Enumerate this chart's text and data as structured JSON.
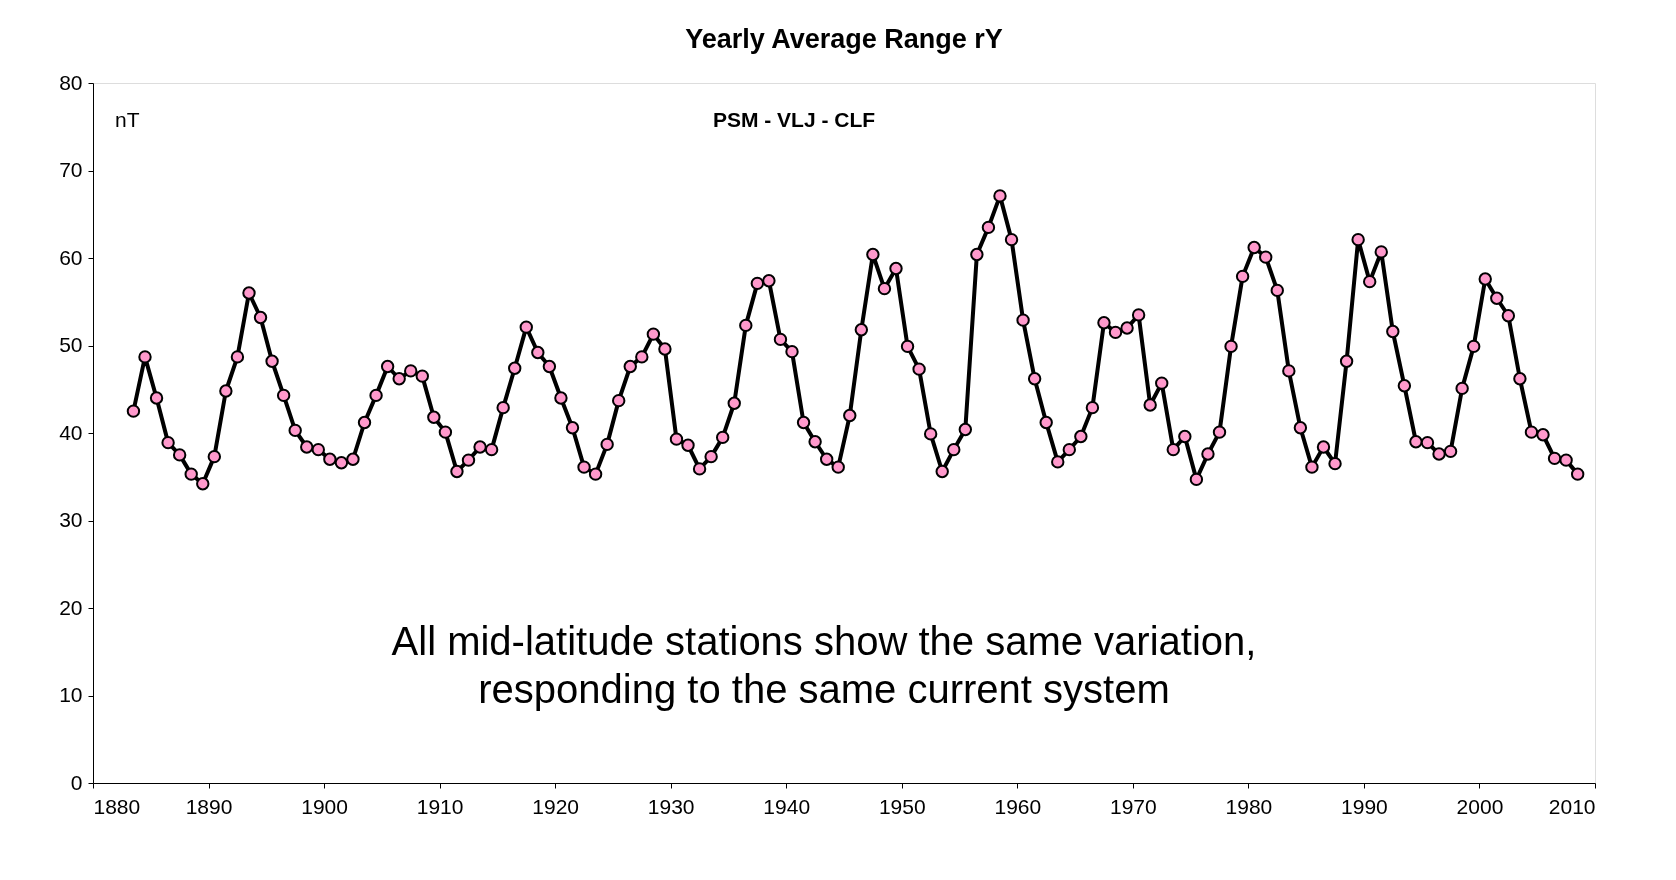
{
  "chart_data": {
    "type": "line",
    "title": "Yearly Average Range rY",
    "subtitle": "PSM - VLJ - CLF",
    "ylabel": "nT",
    "annotations": [
      "All mid-latitude stations show the same variation,\nresponding to the same current system"
    ],
    "x": [
      1883.5,
      1884.5,
      1885.5,
      1886.5,
      1887.5,
      1888.5,
      1889.5,
      1890.5,
      1891.5,
      1892.5,
      1893.5,
      1894.5,
      1895.5,
      1896.5,
      1897.5,
      1898.5,
      1899.5,
      1900.5,
      1901.5,
      1902.5,
      1903.5,
      1904.5,
      1905.5,
      1906.5,
      1907.5,
      1908.5,
      1909.5,
      1910.5,
      1911.5,
      1912.5,
      1913.5,
      1914.5,
      1915.5,
      1916.5,
      1917.5,
      1918.5,
      1919.5,
      1920.5,
      1921.5,
      1922.5,
      1923.5,
      1924.5,
      1925.5,
      1926.5,
      1927.5,
      1928.5,
      1929.5,
      1930.5,
      1931.5,
      1932.5,
      1933.5,
      1934.5,
      1935.5,
      1936.5,
      1937.5,
      1938.5,
      1939.5,
      1940.5,
      1941.5,
      1942.5,
      1943.5,
      1944.5,
      1945.5,
      1946.5,
      1947.5,
      1948.5,
      1949.5,
      1950.5,
      1951.5,
      1952.5,
      1953.5,
      1954.5,
      1955.5,
      1956.5,
      1957.5,
      1958.5,
      1959.5,
      1960.5,
      1961.5,
      1962.5,
      1963.5,
      1964.5,
      1965.5,
      1966.5,
      1967.5,
      1968.5,
      1969.5,
      1970.5,
      1971.5,
      1972.5,
      1973.5,
      1974.5,
      1975.5,
      1976.5,
      1977.5,
      1978.5,
      1979.5,
      1980.5,
      1981.5,
      1982.5,
      1983.5,
      1984.5,
      1985.5,
      1986.5,
      1987.5,
      1988.5,
      1989.5,
      1990.5,
      1991.5,
      1992.5,
      1993.5,
      1994.5,
      1995.5,
      1996.5,
      1997.5,
      1998.5,
      1999.5,
      2000.5,
      2001.5,
      2002.5,
      2003.5,
      2004.5,
      2005.5,
      2006.5,
      2007.5,
      2008.5
    ],
    "series": [
      {
        "color": "#ff99cc",
        "values": [
          42.5,
          48.7,
          44,
          38.9,
          37.5,
          35.3,
          34.2,
          37.3,
          44.8,
          48.7,
          56,
          53.2,
          48.2,
          44.3,
          40.3,
          38.4,
          38.1,
          37,
          36.6,
          37,
          41.2,
          44.3,
          47.6,
          46.2,
          47.1,
          46.5,
          41.8,
          40.1,
          35.6,
          36.9,
          38.4,
          38.1,
          42.9,
          47.4,
          52.1,
          49.2,
          47.6,
          44,
          40.6,
          36.1,
          35.3,
          38.7,
          43.7,
          47.6,
          48.7,
          51.3,
          49.6,
          39.3,
          38.6,
          35.9,
          37.3,
          39.5,
          43.4,
          52.3,
          57.1,
          57.4,
          50.7,
          49.3,
          41.2,
          39,
          37,
          36.1,
          42,
          51.8,
          60.4,
          56.5,
          58.8,
          49.9,
          47.3,
          39.9,
          35.6,
          38.1,
          40.4,
          60.4,
          63.5,
          67.1,
          62.1,
          52.9,
          46.2,
          41.2,
          36.7,
          38.1,
          39.6,
          42.9,
          52.6,
          51.5,
          52,
          53.5,
          43.2,
          45.7,
          38.1,
          39.6,
          34.7,
          37.6,
          40.1,
          49.9,
          57.9,
          61.2,
          60.1,
          56.3,
          47.1,
          40.6,
          36.1,
          38.4,
          36.5,
          48.2,
          62.1,
          57.3,
          60.7,
          51.6,
          45.4,
          39,
          38.9,
          37.6,
          37.9,
          45.1,
          49.9,
          57.6,
          55.4,
          53.4,
          46.2,
          40.1,
          39.8,
          37.1,
          36.9,
          35.3
        ]
      }
    ],
    "marker": "circle",
    "line_style": "solid",
    "xlim": [
      1880,
      2010
    ],
    "xticks": [
      1880,
      1890,
      1900,
      1910,
      1920,
      1930,
      1940,
      1950,
      1960,
      1970,
      1980,
      1990,
      2000,
      2010
    ],
    "ylim": [
      0,
      80
    ],
    "yticks": [
      0,
      10,
      20,
      30,
      40,
      50,
      60,
      70,
      80
    ]
  }
}
